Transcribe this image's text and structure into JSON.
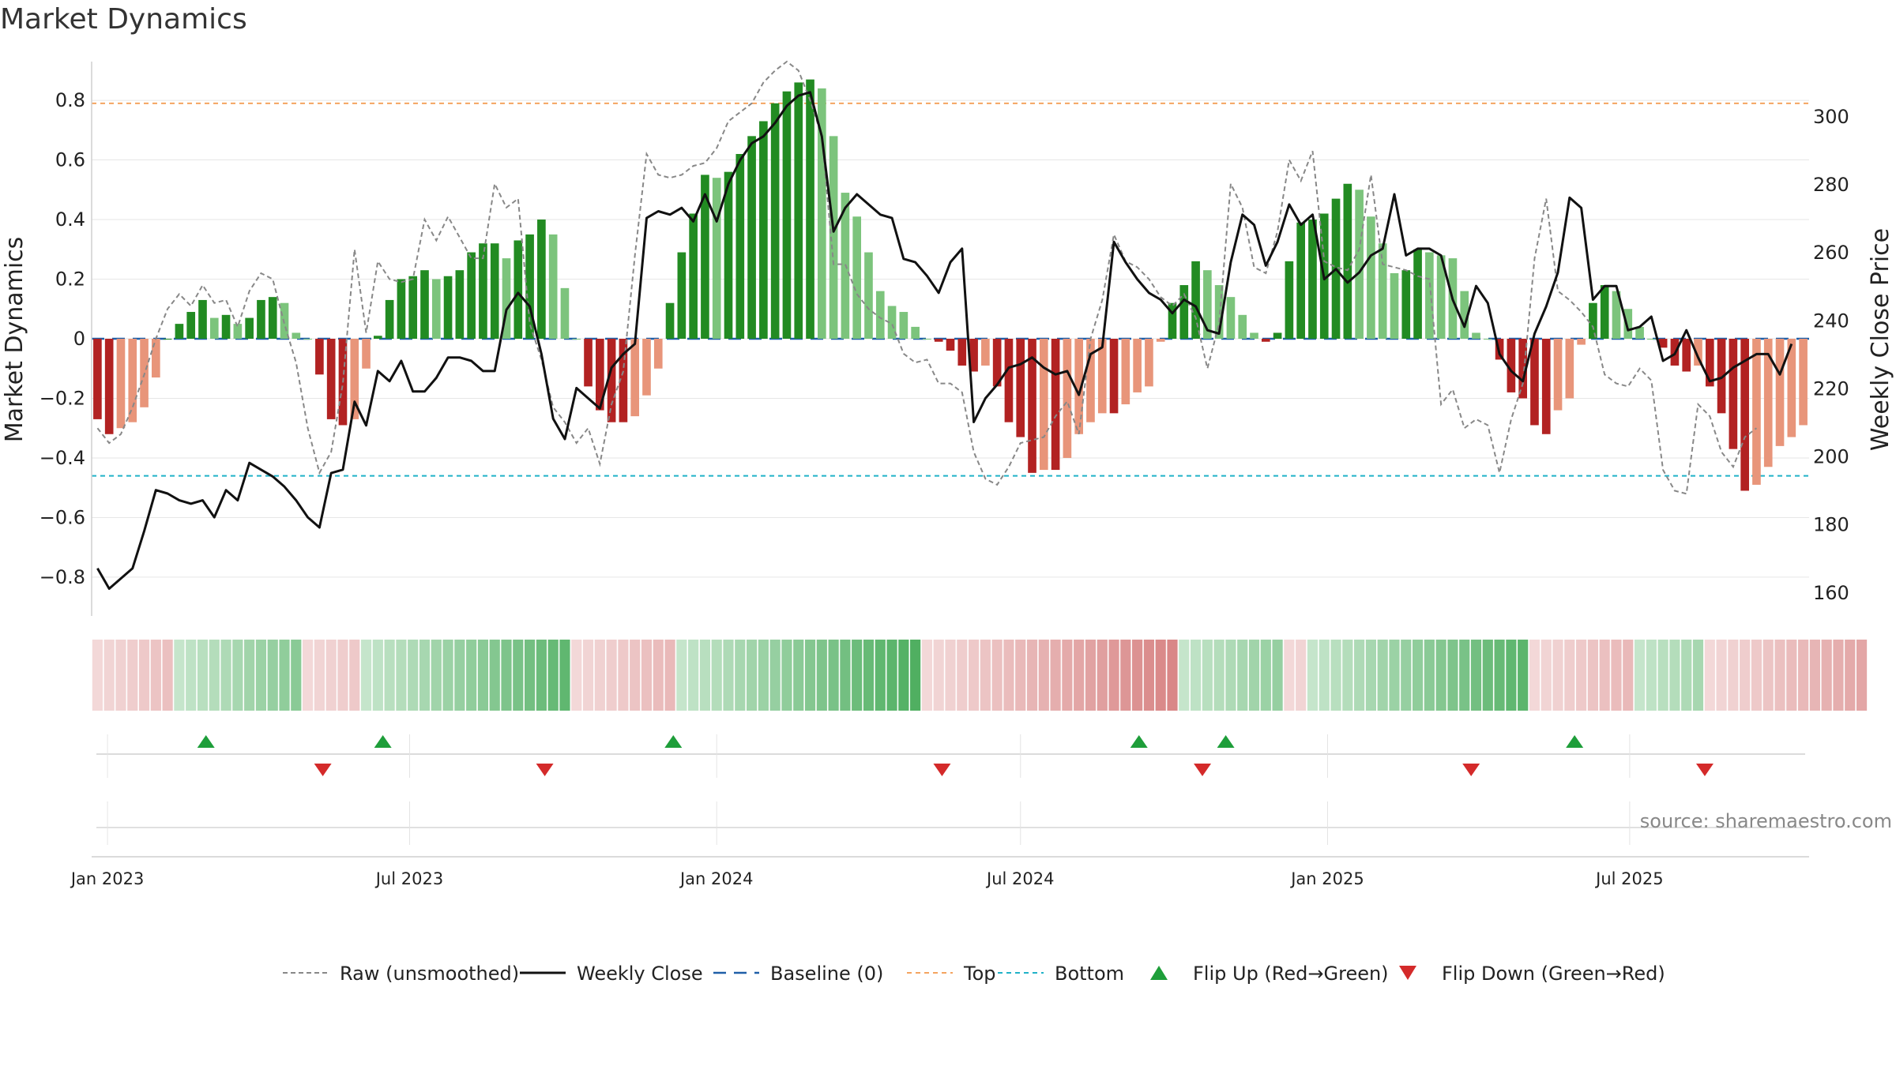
{
  "title": "Market Dynamics",
  "source": "source: sharemaestro.com",
  "colors": {
    "strong_green": "#228b22",
    "light_green": "#7cc47c",
    "strong_red": "#b22222",
    "light_red": "#e8957a",
    "weekly_close": "#111111",
    "raw": "#888888",
    "baseline": "#1f5fa8",
    "top": "#f4a460",
    "bottom": "#20b2c8",
    "flip_up": "#1e9e3a",
    "flip_down": "#d42a2a"
  },
  "chart_data": {
    "type": "bar",
    "start_date": "2022-12-26",
    "y_left": {
      "label": "Market Dynamics",
      "ticks": [
        "0.8",
        "0.6",
        "0.4",
        "0.2",
        "0",
        "−0.2",
        "−0.4",
        "−0.6",
        "−0.8"
      ],
      "tick_values": [
        0.8,
        0.6,
        0.4,
        0.2,
        0,
        -0.2,
        -0.4,
        -0.6,
        -0.8
      ],
      "range": [
        -0.93,
        0.93
      ]
    },
    "y_right": {
      "label": "Weekly Close Price",
      "ticks": [
        "300",
        "280",
        "260",
        "240",
        "220",
        "200",
        "180",
        "160"
      ],
      "tick_values": [
        300,
        280,
        260,
        240,
        220,
        200,
        180,
        160
      ],
      "range": [
        153,
        316
      ]
    },
    "x_ticks": [
      {
        "label": "Jan 2023",
        "date": "2023-01-01"
      },
      {
        "label": "Jul 2023",
        "date": "2023-07-01"
      },
      {
        "label": "Jan 2024",
        "date": "2024-01-01"
      },
      {
        "label": "Jul 2024",
        "date": "2024-07-01"
      },
      {
        "label": "Jan 2025",
        "date": "2025-01-01"
      },
      {
        "label": "Jul 2025",
        "date": "2025-07-01"
      }
    ],
    "top_level": 0.79,
    "bottom_level": -0.46,
    "baseline": 0,
    "dynamics_values": [
      -0.27,
      -0.32,
      -0.3,
      -0.28,
      -0.23,
      -0.13,
      0,
      0.05,
      0.09,
      0.13,
      0.07,
      0.08,
      0.05,
      0.07,
      0.13,
      0.14,
      0.12,
      0.02,
      0,
      -0.12,
      -0.27,
      -0.29,
      -0.27,
      -0.1,
      0.01,
      0.13,
      0.2,
      0.21,
      0.23,
      0.2,
      0.21,
      0.23,
      0.29,
      0.32,
      0.32,
      0.27,
      0.33,
      0.35,
      0.4,
      0.35,
      0.17,
      0,
      -0.16,
      -0.24,
      -0.28,
      -0.28,
      -0.26,
      -0.19,
      -0.1,
      0.12,
      0.29,
      0.42,
      0.55,
      0.54,
      0.56,
      0.62,
      0.68,
      0.73,
      0.79,
      0.83,
      0.86,
      0.87,
      0.84,
      0.68,
      0.49,
      0.41,
      0.29,
      0.16,
      0.11,
      0.09,
      0.04,
      0,
      -0.01,
      -0.04,
      -0.09,
      -0.11,
      -0.09,
      -0.16,
      -0.28,
      -0.33,
      -0.45,
      -0.44,
      -0.44,
      -0.4,
      -0.32,
      -0.28,
      -0.25,
      -0.25,
      -0.22,
      -0.18,
      -0.16,
      -0.01,
      0.12,
      0.18,
      0.26,
      0.23,
      0.18,
      0.14,
      0.08,
      0.02,
      -0.01,
      0.02,
      0.26,
      0.39,
      0.4,
      0.42,
      0.47,
      0.52,
      0.5,
      0.41,
      0.32,
      0.22,
      0.23,
      0.3,
      0.29,
      0.28,
      0.27,
      0.16,
      0.02,
      0,
      -0.07,
      -0.18,
      -0.2,
      -0.29,
      -0.32,
      -0.24,
      -0.2,
      -0.02,
      0.12,
      0.18,
      0.16,
      0.1,
      0.04,
      0,
      -0.03,
      -0.09,
      -0.11,
      -0.09,
      -0.16,
      -0.25,
      -0.37,
      -0.51,
      -0.49,
      -0.43,
      -0.36,
      -0.33,
      -0.29
    ],
    "weekly_close_values": [
      167,
      161,
      164,
      167,
      178,
      190,
      189,
      187,
      186,
      187,
      182,
      190,
      187,
      198,
      196,
      194,
      191,
      187,
      182,
      179,
      195,
      196,
      216,
      209,
      225,
      222,
      228,
      219,
      219,
      223,
      229,
      229,
      228,
      225,
      225,
      243,
      248,
      244,
      230,
      211,
      205,
      220,
      217,
      214,
      226,
      230,
      233,
      270,
      272,
      271,
      273,
      269,
      277,
      269,
      280,
      287,
      292,
      294,
      298,
      303,
      306,
      307,
      294,
      266,
      273,
      277,
      274,
      271,
      270,
      258,
      257,
      253,
      248,
      257,
      261,
      210,
      217,
      221,
      226,
      227,
      229,
      226,
      224,
      225,
      218,
      230,
      232,
      263,
      257,
      252,
      248,
      246,
      242,
      246,
      244,
      237,
      236,
      257,
      271,
      268,
      256,
      263,
      274,
      268,
      271,
      252,
      255,
      251,
      254,
      259,
      261,
      277,
      259,
      261,
      261,
      259,
      246,
      238,
      250,
      245,
      230,
      225,
      222,
      236,
      244,
      254,
      276,
      273,
      246,
      250,
      250,
      237,
      238,
      241,
      228,
      230,
      237,
      229,
      222,
      223,
      226,
      228,
      230,
      230,
      224,
      233
    ],
    "raw_values": [
      -0.3,
      -0.35,
      -0.32,
      -0.23,
      -0.12,
      0,
      0.1,
      0.15,
      0.11,
      0.18,
      0.12,
      0.13,
      0.04,
      0.16,
      0.22,
      0.2,
      0.05,
      -0.08,
      -0.3,
      -0.45,
      -0.38,
      -0.15,
      0.3,
      0.02,
      0.26,
      0.2,
      0.19,
      0.2,
      0.4,
      0.33,
      0.41,
      0.34,
      0.27,
      0.27,
      0.52,
      0.44,
      0.47,
      0.05,
      -0.07,
      -0.23,
      -0.28,
      -0.35,
      -0.3,
      -0.42,
      -0.22,
      -0.11,
      0.28,
      0.62,
      0.55,
      0.54,
      0.55,
      0.58,
      0.59,
      0.64,
      0.73,
      0.76,
      0.79,
      0.86,
      0.9,
      0.93,
      0.9,
      0.8,
      0.68,
      0.25,
      0.25,
      0.15,
      0.1,
      0.07,
      0.05,
      -0.05,
      -0.08,
      -0.07,
      -0.15,
      -0.15,
      -0.18,
      -0.38,
      -0.47,
      -0.49,
      -0.43,
      -0.35,
      -0.34,
      -0.33,
      -0.26,
      -0.21,
      -0.32,
      0,
      0.13,
      0.35,
      0.26,
      0.24,
      0.2,
      0.14,
      0.11,
      0.15,
      0.07,
      -0.1,
      0.05,
      0.52,
      0.44,
      0.24,
      0.22,
      0.36,
      0.6,
      0.53,
      0.63,
      0.26,
      0.24,
      0.23,
      0.3,
      0.55,
      0.25,
      0.24,
      0.23,
      0.21,
      0.2,
      -0.22,
      -0.17,
      -0.3,
      -0.27,
      -0.29,
      -0.45,
      -0.27,
      -0.15,
      0.27,
      0.47,
      0.16,
      0.13,
      0.09,
      0.04,
      -0.12,
      -0.15,
      -0.16,
      -0.1,
      -0.14,
      -0.44,
      -0.51,
      -0.52,
      -0.22,
      -0.26,
      -0.38,
      -0.43,
      -0.33,
      -0.3
    ],
    "regime_strip": [
      "r",
      "r",
      "r",
      "r",
      "r",
      "r",
      "r",
      "g",
      "g",
      "g",
      "g",
      "g",
      "g",
      "g",
      "g",
      "g",
      "g",
      "g",
      "r",
      "r",
      "r",
      "r",
      "r",
      "g",
      "g",
      "g",
      "g",
      "g",
      "g",
      "g",
      "g",
      "g",
      "g",
      "g",
      "g",
      "g",
      "g",
      "g",
      "g",
      "g",
      "g",
      "r",
      "r",
      "r",
      "r",
      "r",
      "r",
      "r",
      "r",
      "r",
      "g",
      "g",
      "g",
      "g",
      "g",
      "g",
      "g",
      "g",
      "g",
      "g",
      "g",
      "g",
      "g",
      "g",
      "g",
      "g",
      "g",
      "g",
      "g",
      "g",
      "g",
      "r",
      "r",
      "r",
      "r",
      "r",
      "r",
      "r",
      "r",
      "r",
      "r",
      "r",
      "r",
      "r",
      "r",
      "r",
      "r",
      "r",
      "r",
      "r",
      "r",
      "r",
      "r",
      "g",
      "g",
      "g",
      "g",
      "g",
      "g",
      "g",
      "g",
      "g",
      "r",
      "r",
      "g",
      "g",
      "g",
      "g",
      "g",
      "g",
      "g",
      "g",
      "g",
      "g",
      "g",
      "g",
      "g",
      "g",
      "g",
      "g",
      "g",
      "g",
      "g",
      "r",
      "r",
      "r",
      "r",
      "r",
      "r",
      "r",
      "r",
      "r",
      "g",
      "g",
      "g",
      "g",
      "g",
      "g",
      "r",
      "r",
      "r",
      "r",
      "r",
      "r",
      "r",
      "r",
      "r",
      "r",
      "r",
      "r",
      "r",
      "r"
    ],
    "flip_up_dates": [
      "2023-03-01",
      "2023-06-15",
      "2023-12-06",
      "2024-09-10",
      "2024-11-01",
      "2025-05-29"
    ],
    "flip_down_dates": [
      "2023-05-10",
      "2023-09-20",
      "2024-05-15",
      "2024-10-18",
      "2025-03-28",
      "2025-08-15"
    ],
    "legend": [
      {
        "label": "Raw (unsmoothed)",
        "style": "raw"
      },
      {
        "label": "Weekly Close",
        "style": "close"
      },
      {
        "label": "Baseline (0)",
        "style": "baseline"
      },
      {
        "label": "Top",
        "style": "top"
      },
      {
        "label": "Bottom",
        "style": "bottom"
      },
      {
        "label": "Flip Up (Red→Green)",
        "style": "flipup"
      },
      {
        "label": "Flip Down (Green→Red)",
        "style": "flipdown"
      }
    ]
  }
}
